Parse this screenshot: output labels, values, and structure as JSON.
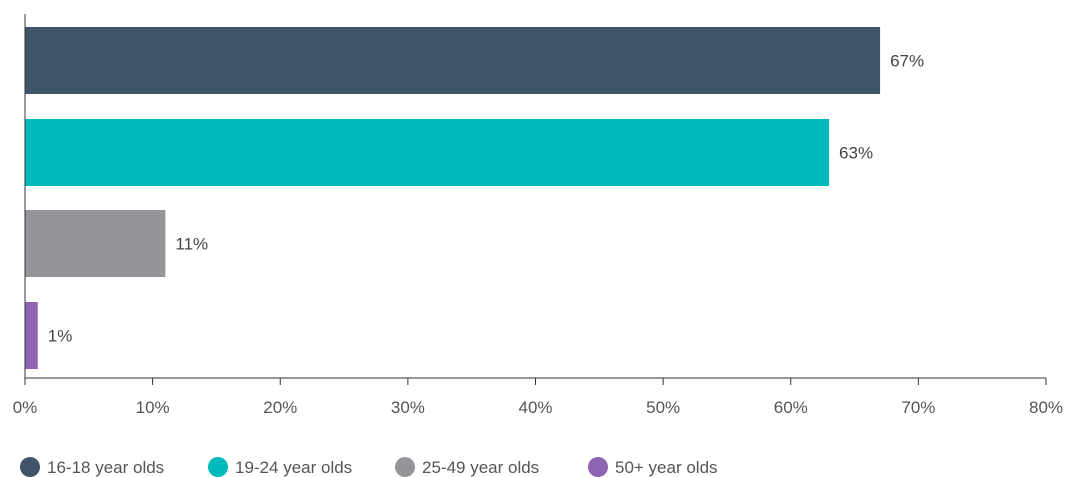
{
  "chart_data": {
    "type": "bar",
    "orientation": "horizontal",
    "title": "",
    "xlabel": "",
    "ylabel": "",
    "xlim": [
      0,
      80
    ],
    "x_ticks": [
      0,
      10,
      20,
      30,
      40,
      50,
      60,
      70,
      80
    ],
    "x_tick_labels": [
      "0%",
      "10%",
      "20%",
      "30%",
      "40%",
      "50%",
      "60%",
      "70%",
      "80%"
    ],
    "grid": false,
    "legend_position": "bottom",
    "series": [
      {
        "name": "16-18 year olds",
        "value": 67,
        "label": "67%",
        "color": "#3f5468"
      },
      {
        "name": "19-24 year olds",
        "value": 63,
        "label": "63%",
        "color": "#00b9bc"
      },
      {
        "name": "25-49 year olds",
        "value": 11,
        "label": "11%",
        "color": "#939598"
      },
      {
        "name": "50+ year olds",
        "value": 1,
        "label": "1%",
        "color": "#8e63b1"
      }
    ]
  }
}
